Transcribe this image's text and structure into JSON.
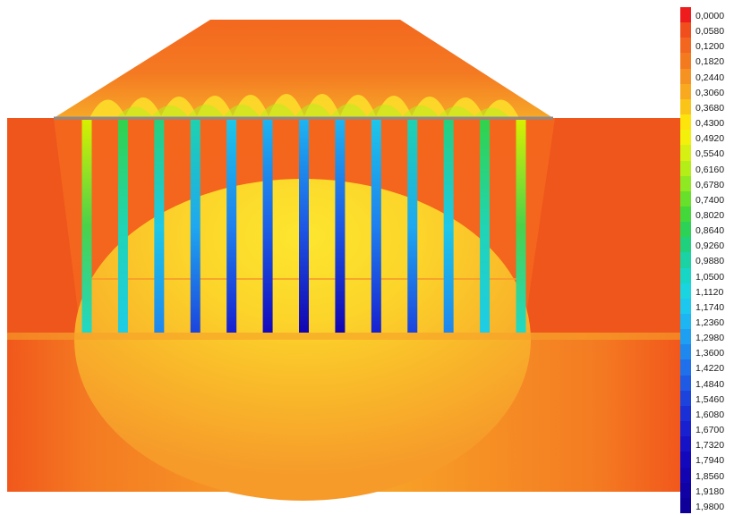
{
  "legend": {
    "values": [
      "0,0000",
      "0,0580",
      "0,1200",
      "0,1820",
      "0,2440",
      "0,3060",
      "0,3680",
      "0,4300",
      "0,4920",
      "0,5540",
      "0,6160",
      "0,6780",
      "0,7400",
      "0,8020",
      "0,8640",
      "0,9260",
      "0,9880",
      "1,0500",
      "1,1120",
      "1,1740",
      "1,2360",
      "1,2980",
      "1,3600",
      "1,4220",
      "1,4840",
      "1,5460",
      "1,6080",
      "1,6700",
      "1,7320",
      "1,7940",
      "1,8560",
      "1,9180",
      "1,9800"
    ],
    "colors": [
      "#ee1c1c",
      "#f04e1c",
      "#f3661f",
      "#f47a20",
      "#f69221",
      "#f8a91f",
      "#fbc418",
      "#fde40c",
      "#f3f00c",
      "#d5f012",
      "#b4ee19",
      "#8ee822",
      "#66e02a",
      "#43d83a",
      "#2cd256",
      "#1fd07d",
      "#1ad2a4",
      "#18d6c6",
      "#1ad4e0",
      "#1cc8ee",
      "#1eb6f2",
      "#1f9ff2",
      "#1f88ee",
      "#1f70ea",
      "#1e5ae4",
      "#1c44dd",
      "#1a30d6",
      "#1820cf",
      "#1612c6",
      "#1408bc",
      "#1204b0",
      "#1002a4",
      "#0e0098"
    ]
  },
  "colors": {
    "soil_orange": "#f4621d",
    "soil_dark_orange": "#ef5a1c",
    "embankment_orange": "#f26c1e",
    "lower_layer": "#f8a12a",
    "yellow_bulb": "#fde030",
    "platform_line": "#8a8a8a"
  },
  "columns": [
    {
      "top_color": "#d8f000",
      "mid_color": "#4ad24a",
      "bottom_color": "#20d8c8"
    },
    {
      "top_color": "#32d24a",
      "mid_color": "#20d4b4",
      "bottom_color": "#1ecce6"
    },
    {
      "top_color": "#24d07c",
      "mid_color": "#1ec8e8",
      "bottom_color": "#1f86ee"
    },
    {
      "top_color": "#1ed2b0",
      "mid_color": "#1fa8f0",
      "bottom_color": "#1c44dd"
    },
    {
      "top_color": "#1ec6e8",
      "mid_color": "#1f80ee",
      "bottom_color": "#1820cf"
    },
    {
      "top_color": "#1eb4f0",
      "mid_color": "#1e60e6",
      "bottom_color": "#1408bc"
    },
    {
      "top_color": "#1eb4f0",
      "mid_color": "#1e58e4",
      "bottom_color": "#1204b0"
    },
    {
      "top_color": "#1eb4f0",
      "mid_color": "#1e58e4",
      "bottom_color": "#1204b0"
    },
    {
      "top_color": "#1ec6e8",
      "mid_color": "#1f80ee",
      "bottom_color": "#1820cf"
    },
    {
      "top_color": "#1ed2b0",
      "mid_color": "#1fa8f0",
      "bottom_color": "#1c44dd"
    },
    {
      "top_color": "#24d07c",
      "mid_color": "#1ec8e8",
      "bottom_color": "#1f86ee"
    },
    {
      "top_color": "#32d24a",
      "mid_color": "#20d4b4",
      "bottom_color": "#1ecce6"
    },
    {
      "top_color": "#d8f000",
      "mid_color": "#4ad24a",
      "bottom_color": "#20d8c8"
    }
  ]
}
